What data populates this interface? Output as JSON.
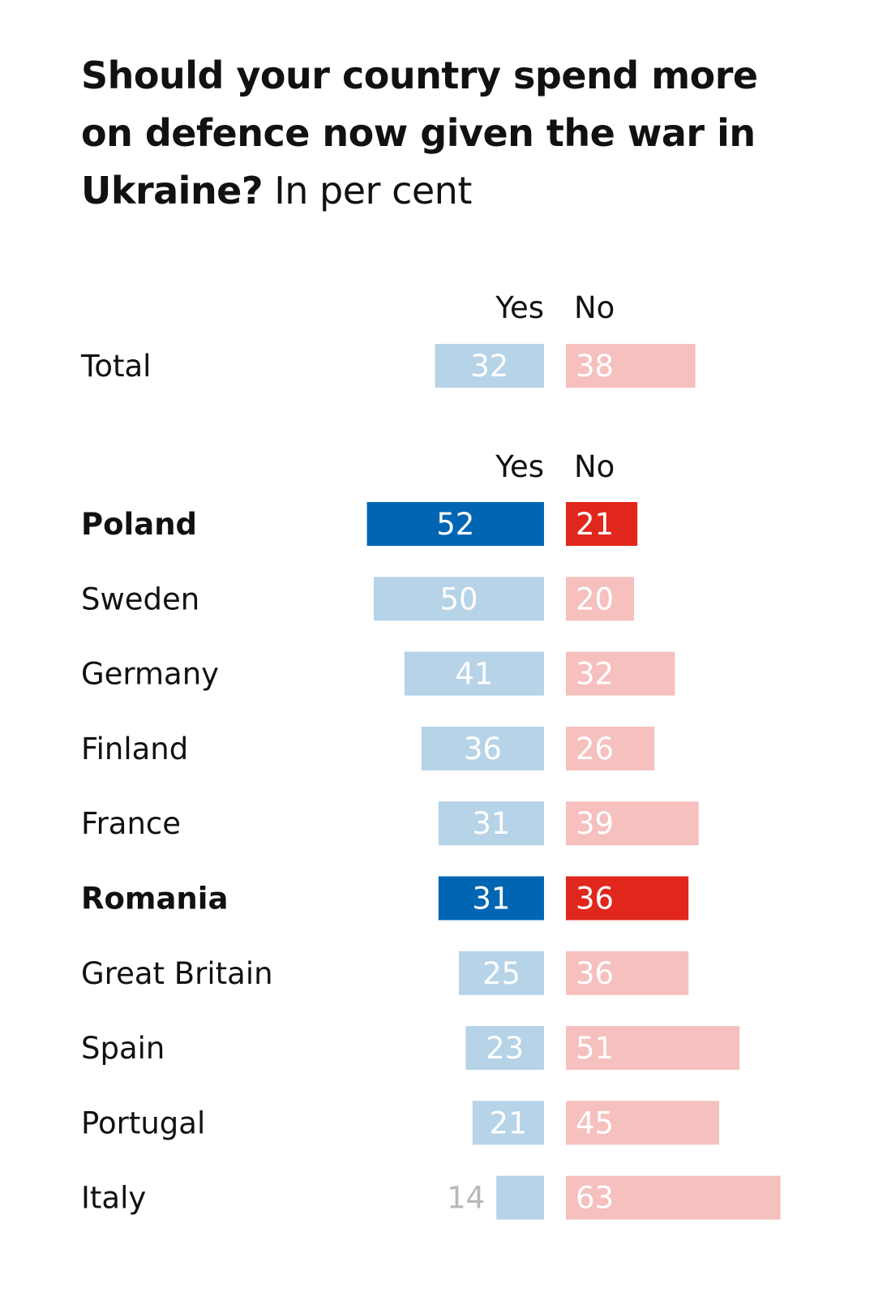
{
  "title": {
    "question": "Should your country spend more on defence now given the war in Ukraine?",
    "unit": "In per cent"
  },
  "colors": {
    "yes_dark": "#0066b3",
    "yes_light": "#b6d3e8",
    "no_dark": "#e1261c",
    "no_light": "#f5c0be",
    "outside_label": "#b8b8b8"
  },
  "chart_data": [
    {
      "type": "bar",
      "layout": "diverging-horizontal",
      "series_labels": [
        "Yes",
        "No"
      ],
      "categories": [
        "Total"
      ],
      "series": [
        {
          "name": "Yes",
          "values": [
            32
          ]
        },
        {
          "name": "No",
          "values": [
            38
          ]
        }
      ],
      "highlighted": []
    },
    {
      "type": "bar",
      "layout": "diverging-horizontal",
      "series_labels": [
        "Yes",
        "No"
      ],
      "categories": [
        "Poland",
        "Sweden",
        "Germany",
        "Finland",
        "France",
        "Romania",
        "Great Britain",
        "Spain",
        "Portugal",
        "Italy"
      ],
      "series": [
        {
          "name": "Yes",
          "values": [
            52,
            50,
            41,
            36,
            31,
            31,
            25,
            23,
            21,
            14
          ]
        },
        {
          "name": "No",
          "values": [
            21,
            20,
            32,
            26,
            39,
            36,
            36,
            51,
            45,
            63
          ]
        }
      ],
      "highlighted": [
        "Poland",
        "Romania"
      ]
    }
  ]
}
